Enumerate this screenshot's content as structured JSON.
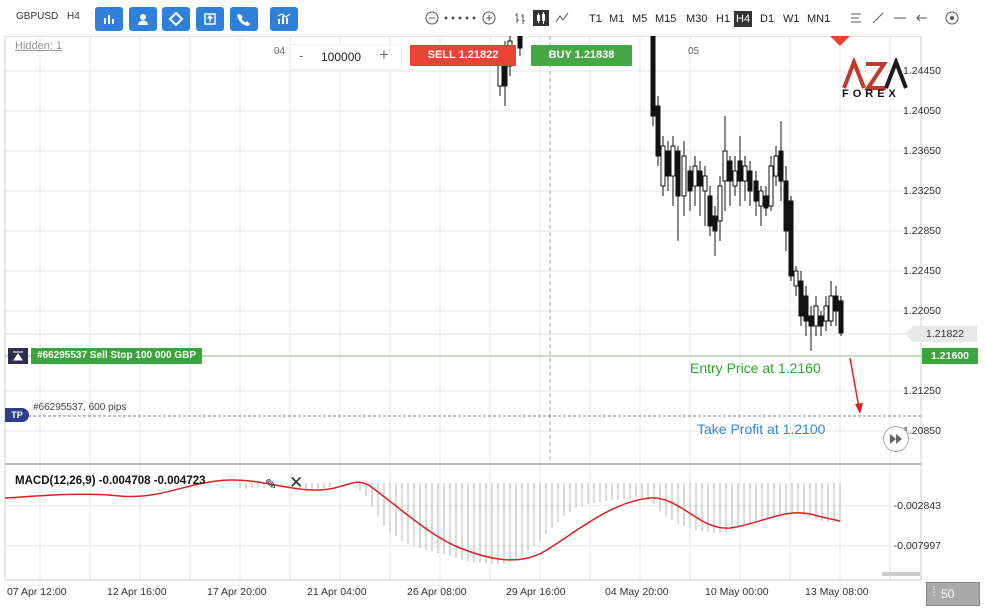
{
  "toolbar": {
    "symbol": "GBPUSD",
    "timeframe_label": "H4",
    "timeframes": [
      "T1",
      "M1",
      "M5",
      "M15",
      "M30",
      "H1",
      "H4",
      "D1",
      "W1",
      "MN1"
    ],
    "active_timeframe": "H4",
    "tool_icons": [
      "bar-chart-icon",
      "user-icon",
      "diamond-icon",
      "order-icon",
      "phone-icon",
      "indicators-icon"
    ],
    "accent_color": "#2f80d8"
  },
  "chart": {
    "hidden_label": "Hidden: 1",
    "date_markers": [
      "04",
      "05"
    ],
    "quantity": "100000",
    "minus": "-",
    "plus": "+",
    "sell_label": "SELL 1.21822",
    "buy_label": "BUY 1.21838",
    "logo_top": "AZA",
    "logo_bottom": "FOREX",
    "price_labels": [
      "1.24450",
      "1.24050",
      "1.23650",
      "1.23250",
      "1.22850",
      "1.22450",
      "1.22050",
      "1.21250",
      "1.20850"
    ],
    "current_price": "1.21822",
    "entry_price_tag": "1.21600",
    "order_label": "#66295537 Sell Stop 100 000 GBP",
    "tp_badge": "TP",
    "tp_label": "#66295537, 600 pips",
    "entry_annotation": "Entry Price at 1.2160",
    "tp_annotation": "Take Profit at 1.2100",
    "colors": {
      "sell": "#e84435",
      "buy": "#45a845",
      "entry": "#2aa92a",
      "tp": "#2f88d8",
      "arrow": "#e02020"
    }
  },
  "macd": {
    "label": "MACD(12,26,9) -0.004708 -0.004723",
    "scale_labels": [
      "-0.002843",
      "-0.007997"
    ]
  },
  "xaxis": {
    "labels": [
      "07 Apr 12:00",
      "12 Apr 16:00",
      "17 Apr 20:00",
      "21 Apr 04:00",
      "26 Apr 08:00",
      "29 Apr 16:00",
      "04 May 20:00",
      "10 May 00:00",
      "13 May 08:00"
    ]
  },
  "footer": {
    "zoom_value": "50"
  }
}
